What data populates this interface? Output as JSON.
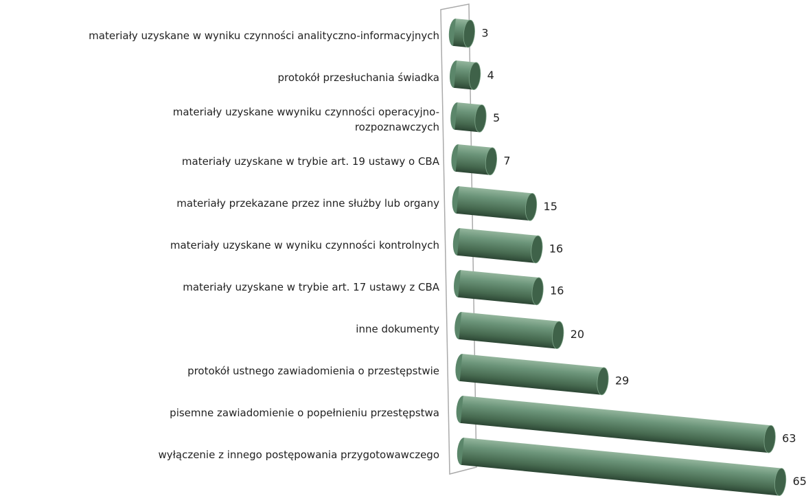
{
  "chart_data": {
    "type": "bar",
    "categories": [
      "materiały uzyskane w wyniku czynności analityczno-informacyjnych",
      "protokół przesłuchania świadka",
      "materiały uzyskane wwyniku czynności operacyjno-\nrozpoznawczych",
      "materiały uzyskane w trybie art. 19 ustawy o CBA",
      "materiały przekazane przez inne służby lub organy",
      "materiały uzyskane w wyniku czynności kontrolnych",
      "materiały uzyskane w trybie art. 17 ustawy z CBA",
      "inne dokumenty",
      "protokół ustnego zawiadomienia o przestępstwie",
      "pisemne zawiadomienie o popełnieniu przestępstwa",
      "wyłączenie z innego postępowania przygotowawczego"
    ],
    "values": [
      3,
      4,
      5,
      7,
      15,
      16,
      16,
      20,
      29,
      63,
      65
    ],
    "color": "#5b866a"
  }
}
